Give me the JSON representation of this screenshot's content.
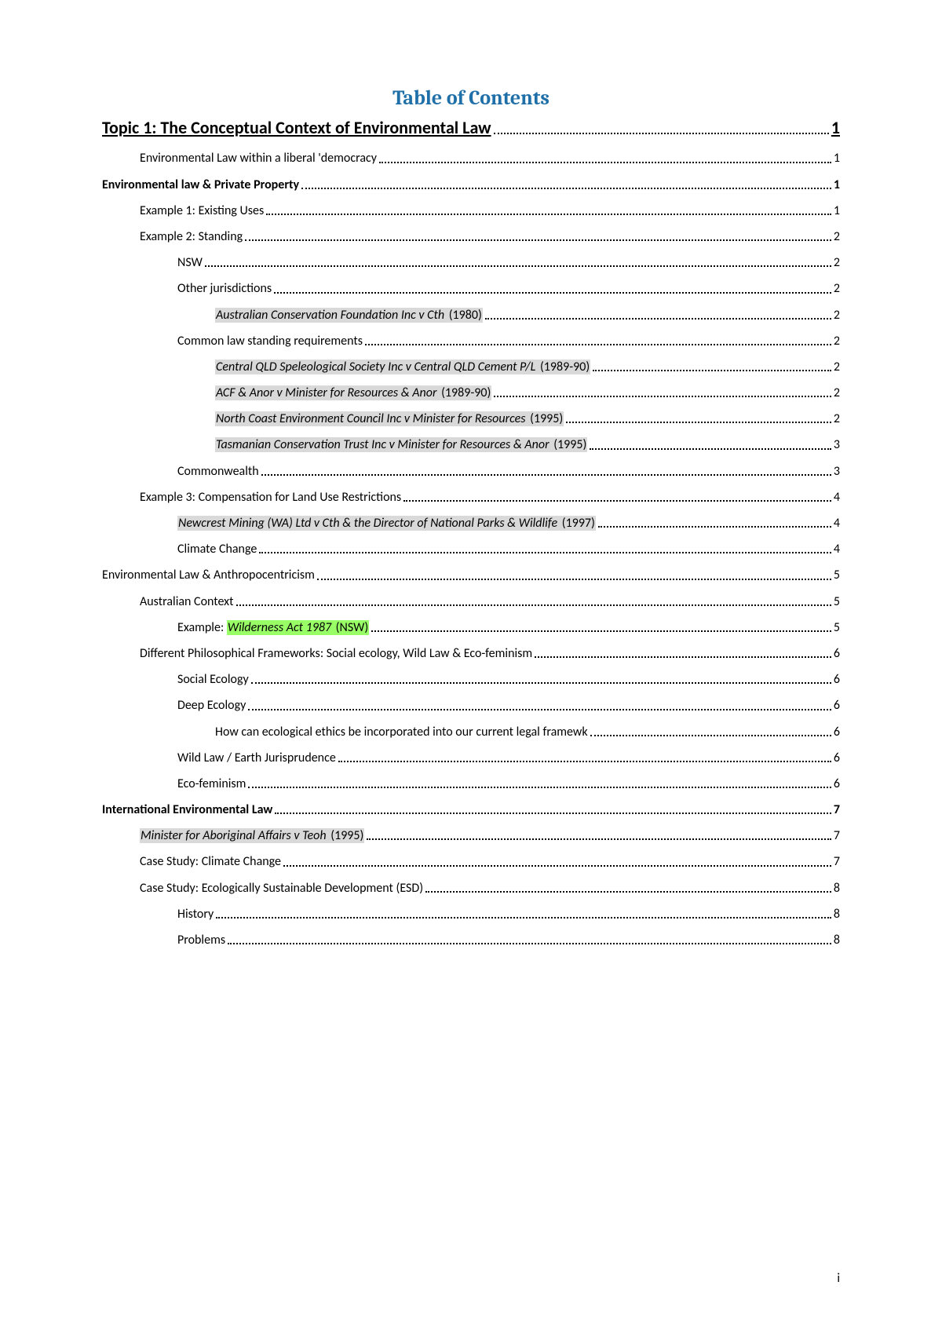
{
  "title": "Table of Contents",
  "page_footer": "i",
  "toc": [
    {
      "text": "Topic 1: The Conceptual Context of Environmental Law",
      "page": "1",
      "indent": 0,
      "bold": true,
      "underline": true,
      "heading": true
    },
    {
      "text": "Environmental Law within a liberal 'democracy",
      "page": "1",
      "indent": 1
    },
    {
      "text": "Environmental law & Private Property",
      "page": "1",
      "indent": 0,
      "bold": true
    },
    {
      "text": "Example 1: Existing Uses",
      "page": "1",
      "indent": 1
    },
    {
      "text": "Example 2: Standing",
      "page": "2",
      "indent": 1
    },
    {
      "text": "NSW",
      "page": "2",
      "indent": 2
    },
    {
      "text": "Other jurisdictions",
      "page": "2",
      "indent": 2
    },
    {
      "parts": [
        {
          "text": "Australian Conservation Foundation Inc v Cth ",
          "hl": "grey",
          "italic": true
        },
        {
          "text": "(1980)",
          "hl": "grey"
        }
      ],
      "page": "2",
      "indent": 3
    },
    {
      "text": "Common law standing requirements",
      "page": "2",
      "indent": 2
    },
    {
      "parts": [
        {
          "text": "Central QLD Speleological Society Inc v Central QLD Cement P/L ",
          "hl": "grey",
          "italic": true
        },
        {
          "text": "(1989-90)",
          "hl": "grey"
        }
      ],
      "page": "2",
      "indent": 3
    },
    {
      "parts": [
        {
          "text": "ACF & Anor v Minister for Resources & Anor ",
          "hl": "grey",
          "italic": true
        },
        {
          "text": "(1989-90)",
          "hl": "grey"
        }
      ],
      "page": "2",
      "indent": 3
    },
    {
      "parts": [
        {
          "text": "North Coast Environment Council Inc v Minister for Resources ",
          "hl": "grey",
          "italic": true
        },
        {
          "text": "(1995)",
          "hl": "grey"
        }
      ],
      "page": "2",
      "indent": 3
    },
    {
      "parts": [
        {
          "text": "Tasmanian Conservation Trust Inc v Minister for Resources & Anor ",
          "hl": "grey",
          "italic": true
        },
        {
          "text": "(1995)",
          "hl": "grey"
        }
      ],
      "page": "3",
      "indent": 3
    },
    {
      "text": "Commonwealth",
      "page": "3",
      "indent": 2
    },
    {
      "text": "Example 3: Compensation for Land Use Restrictions",
      "page": "4",
      "indent": 1
    },
    {
      "parts": [
        {
          "text": "Newcrest Mining (WA) Ltd v Cth & the Director of National Parks & Wildlife ",
          "hl": "grey",
          "italic": true
        },
        {
          "text": "(1997)",
          "hl": "grey"
        }
      ],
      "page": "4",
      "indent": 2
    },
    {
      "text": "Climate Change",
      "page": "4",
      "indent": 2
    },
    {
      "text": "Environmental Law & Anthropocentricism",
      "page": "5",
      "indent": 0
    },
    {
      "text": "Australian Context",
      "page": "5",
      "indent": 1
    },
    {
      "parts": [
        {
          "text": "Example: "
        },
        {
          "text": "Wilderness Act 1987 ",
          "hl": "green",
          "italic": true
        },
        {
          "text": "(NSW)",
          "hl": "green"
        }
      ],
      "page": "5",
      "indent": 2
    },
    {
      "text": "Different Philosophical Frameworks: Social ecology, Wild Law & Eco-feminism",
      "page": "6",
      "indent": 1
    },
    {
      "text": "Social Ecology",
      "page": "6",
      "indent": 2
    },
    {
      "text": "Deep Ecology",
      "page": "6",
      "indent": 2
    },
    {
      "text": "How can ecological ethics be incorporated into our current legal framewk",
      "page": "6",
      "indent": 3
    },
    {
      "text": "Wild Law / Earth Jurisprudence",
      "page": "6",
      "indent": 2
    },
    {
      "text": "Eco-feminism",
      "page": "6",
      "indent": 2
    },
    {
      "text": "International Environmental Law",
      "page": "7",
      "indent": 0,
      "bold": true
    },
    {
      "parts": [
        {
          "text": "Minister for Aboriginal Affairs v Teoh ",
          "hl": "grey",
          "italic": true
        },
        {
          "text": "(1995)",
          "hl": "grey"
        }
      ],
      "page": "7",
      "indent": 1
    },
    {
      "text": "Case Study: Climate Change",
      "page": "7",
      "indent": 1
    },
    {
      "text": "Case Study: Ecologically Sustainable Development (ESD)",
      "page": "8",
      "indent": 1
    },
    {
      "text": "History",
      "page": "8",
      "indent": 2
    },
    {
      "text": "Problems",
      "page": "8",
      "indent": 2
    }
  ]
}
